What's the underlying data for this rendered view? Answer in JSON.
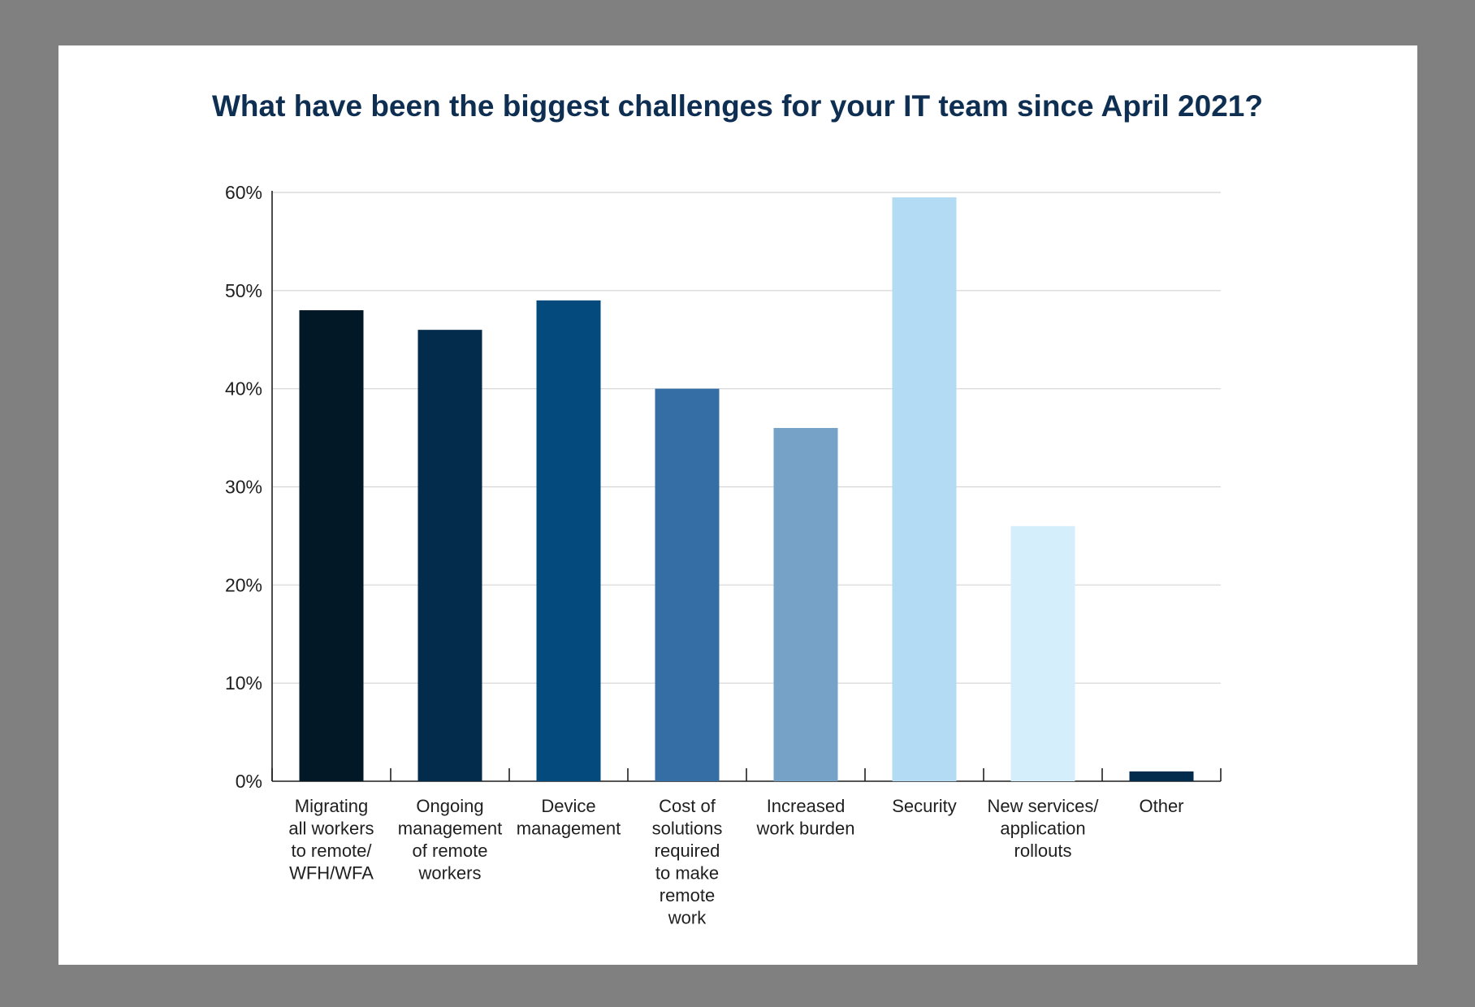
{
  "chart_data": {
    "type": "bar",
    "title": "What have been the biggest challenges for your IT team since April 2021?",
    "xlabel": "",
    "ylabel": "",
    "ylim": [
      0,
      60
    ],
    "yticks": [
      "0%",
      "10%",
      "20%",
      "30%",
      "40%",
      "50%",
      "60%"
    ],
    "grid": true,
    "categories": [
      "Migrating all workers to remote/ WFH/WFA",
      "Ongoing management of remote workers",
      "Device management",
      "Cost of solutions required to make remote work",
      "Increased work burden",
      "Security",
      "New services/ application rollouts",
      "Other"
    ],
    "category_lines": [
      [
        "Migrating",
        "all workers",
        "to remote/",
        "WFH/WFA"
      ],
      [
        "Ongoing",
        "management",
        "of remote",
        "workers"
      ],
      [
        "Device",
        "management"
      ],
      [
        "Cost of",
        "solutions",
        "required",
        "to make",
        "remote",
        "work"
      ],
      [
        "Increased",
        "work burden"
      ],
      [
        "Security"
      ],
      [
        "New services/",
        "application",
        "rollouts"
      ],
      [
        "Other"
      ]
    ],
    "values": [
      48,
      46,
      49,
      40,
      36,
      59.5,
      26,
      1
    ],
    "colors": [
      "#021826",
      "#032b4c",
      "#044a7c",
      "#356ea5",
      "#76a2c7",
      "#b3dbf3",
      "#d5eefc",
      "#032b4c"
    ]
  }
}
